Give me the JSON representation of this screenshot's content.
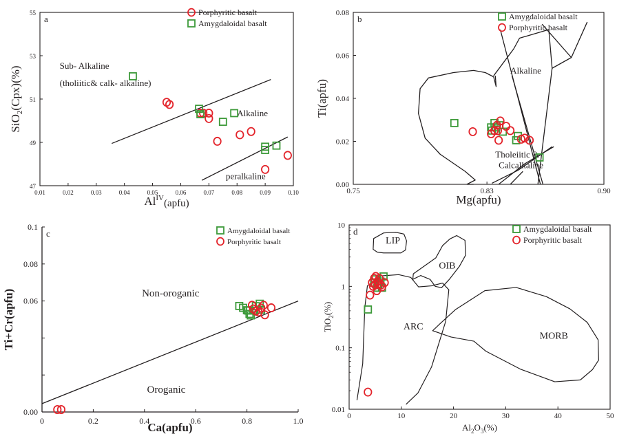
{
  "colors": {
    "porphyritic": "#e3242b",
    "amygdaloidal": "#3d9a3a",
    "line": "#231f20"
  },
  "chart_data": [
    {
      "panel": "a",
      "type": "scatter",
      "xlabel_main": "Al",
      "xlabel_sup": "IV",
      "xlabel_sub": "(apfu)",
      "ylabel_main": "SiO",
      "ylabel_sub": "2",
      "ylabel_rest": "(Cpx)(%)",
      "xlim": [
        0.01,
        0.1
      ],
      "ylim": [
        47,
        55
      ],
      "xticks": [
        0.01,
        0.02,
        0.03,
        0.04,
        0.05,
        0.06,
        0.07,
        0.08,
        0.09,
        0.1
      ],
      "xtick_labels": [
        "0.01",
        "0.02",
        "0.03",
        "0.04",
        "0.05",
        "0.06",
        "0.07",
        "0.08",
        "0.09",
        "0.10"
      ],
      "yticks": [
        47,
        49,
        51,
        53,
        55
      ],
      "ytick_labels": [
        "47",
        "49",
        "51",
        "53",
        "55"
      ],
      "legend": [
        "Porphyritic basalt",
        "Amygdaloidal basalt"
      ],
      "annotations": [
        {
          "text": "Sub- Alkaline",
          "x": 0.017,
          "y": 52.4
        },
        {
          "text": "(tholiitic& calk- alkaline)",
          "x": 0.017,
          "y": 51.6
        },
        {
          "text": "Alkaline",
          "x": 0.08,
          "y": 50.2
        },
        {
          "text": "peralkaline",
          "x": 0.076,
          "y": 47.3
        }
      ],
      "lines": [
        {
          "x": [
            0.0355,
            0.092
          ],
          "y": [
            48.95,
            51.9
          ]
        },
        {
          "x": [
            0.0675,
            0.098
          ],
          "y": [
            47.25,
            49.25
          ]
        }
      ],
      "series": [
        {
          "name": "Porphyritic basalt",
          "marker": "circle",
          "x": [
            0.055,
            0.056,
            0.067,
            0.068,
            0.07,
            0.07,
            0.073,
            0.081,
            0.085,
            0.09,
            0.098
          ],
          "y": [
            50.85,
            50.75,
            50.35,
            50.35,
            50.35,
            50.1,
            49.05,
            49.35,
            49.5,
            47.75,
            48.4
          ]
        },
        {
          "name": "Amygdaloidal basalt",
          "marker": "square",
          "x": [
            0.043,
            0.0665,
            0.067,
            0.075,
            0.079,
            0.09,
            0.09,
            0.094
          ],
          "y": [
            52.05,
            50.55,
            50.3,
            49.95,
            50.35,
            48.8,
            48.65,
            48.85
          ]
        }
      ]
    },
    {
      "panel": "b",
      "type": "scatter",
      "xlabel_main": "Mg(apfu)",
      "ylabel_main": "Ti(apfu)",
      "xlim": [
        0.75,
        0.9
      ],
      "ylim": [
        0,
        0.08
      ],
      "xticks": [
        0.75,
        0.83,
        0.9
      ],
      "xtick_labels": [
        "0.75",
        "0.83",
        "0.90"
      ],
      "yticks": [
        0,
        0.02,
        0.04,
        0.06,
        0.08
      ],
      "ytick_labels": [
        "0.00",
        "0.02",
        "0.04",
        "0.06",
        "0.08"
      ],
      "legend": [
        "Amygdaloidal basalt",
        "Porphyritic basalt"
      ],
      "annotations": [
        {
          "text": "Alkaline",
          "x": 0.844,
          "y": 0.0515
        },
        {
          "text": "Tholeiitic &",
          "x": 0.835,
          "y": 0.0125
        },
        {
          "text": "Calcalkaline",
          "x": 0.837,
          "y": 0.0075
        }
      ],
      "lines": [
        {
          "x": [
            0.835,
            0.8355,
            0.834,
            0.829,
            0.822,
            0.81,
            0.795,
            0.79,
            0.789,
            0.793,
            0.802,
            0.817,
            0.823,
            0.818,
            0.822
          ],
          "y": [
            0.0505,
            0.0455,
            0.05,
            0.052,
            0.053,
            0.052,
            0.0495,
            0.0445,
            0.033,
            0.0215,
            0.014,
            0.006,
            0.002,
            0.0,
            0.0
          ]
        },
        {
          "x": [
            0.834,
            0.846,
            0.8495,
            0.867,
            0.869,
            0.8605
          ],
          "y": [
            0.0505,
            0.063,
            0.068,
            0.072,
            0.054,
            0.0
          ]
        },
        {
          "x": [
            0.838,
            0.862
          ],
          "y": [
            0.072,
            0.0
          ]
        },
        {
          "x": [
            0.845,
            0.8635
          ],
          "y": [
            0.0505,
            0.0
          ]
        },
        {
          "x": [
            0.833,
            0.8485,
            0.869
          ],
          "y": [
            0.0005,
            0.0065,
            0.0175
          ]
        },
        {
          "x": [
            0.837,
            0.8525,
            0.87
          ],
          "y": [
            0.0,
            0.0095,
            0.0175
          ]
        },
        {
          "x": [
            0.844,
            0.8515
          ],
          "y": [
            0.0,
            0.006
          ]
        },
        {
          "x": [
            0.863,
            0.8805,
            0.89
          ],
          "y": [
            0.0745,
            0.059,
            0.0755
          ]
        },
        {
          "x": [
            0.869,
            0.8805
          ],
          "y": [
            0.054,
            0.059
          ]
        }
      ],
      "series": [
        {
          "name": "Amygdaloidal basalt",
          "marker": "square",
          "x": [
            0.8105,
            0.8325,
            0.833,
            0.8345,
            0.8355,
            0.8375,
            0.8395,
            0.8475,
            0.8485,
            0.8615
          ],
          "y": [
            0.0285,
            0.0265,
            0.025,
            0.0285,
            0.0265,
            0.0275,
            0.0245,
            0.0205,
            0.0225,
            0.0125
          ]
        },
        {
          "name": "Porphyritic basalt",
          "marker": "circle",
          "x": [
            0.8215,
            0.8325,
            0.8345,
            0.836,
            0.8365,
            0.837,
            0.838,
            0.8415,
            0.844,
            0.8505,
            0.8525,
            0.8555
          ],
          "y": [
            0.0245,
            0.0235,
            0.025,
            0.0275,
            0.025,
            0.0205,
            0.0295,
            0.027,
            0.025,
            0.021,
            0.0215,
            0.0205
          ]
        }
      ]
    },
    {
      "panel": "c",
      "type": "scatter",
      "xlabel_main": "Ca(apfu)",
      "ylabel_main": "Ti+Cr(apfu)",
      "xlim": [
        0,
        1
      ],
      "ylim": [
        0,
        0.1
      ],
      "xticks": [
        0,
        0.2,
        0.4,
        0.6,
        0.8,
        1.0
      ],
      "xtick_labels": [
        "0",
        "0.2",
        "0.4",
        "0.6",
        "0.8",
        "1.0"
      ],
      "yticks": [
        0,
        0.02,
        0.04,
        0.06,
        0.08,
        0.1
      ],
      "ytick_labels": [
        "0.00",
        "",
        "",
        "0.06",
        "0.08",
        "0.1"
      ],
      "legend": [
        "Amygdaloidal basalt",
        "Porphyritic basalt"
      ],
      "annotations": [
        {
          "text": "Non-oroganic",
          "x": 0.39,
          "y": 0.0625
        },
        {
          "text": "Oroganic",
          "x": 0.41,
          "y": 0.0105
        }
      ],
      "lines": [
        {
          "x": [
            0.0,
            1.0
          ],
          "y": [
            0.0045,
            0.06
          ]
        }
      ],
      "series": [
        {
          "name": "Amygdaloidal basalt",
          "marker": "square",
          "x": [
            0.77,
            0.785,
            0.8,
            0.805,
            0.81,
            0.815,
            0.825,
            0.835,
            0.85,
            0.855
          ],
          "y": [
            0.0573,
            0.0563,
            0.055,
            0.0548,
            0.053,
            0.0522,
            0.0548,
            0.0572,
            0.0585,
            0.0553
          ]
        },
        {
          "name": "Porphyritic basalt",
          "marker": "circle",
          "x": [
            0.06,
            0.075,
            0.82,
            0.825,
            0.835,
            0.845,
            0.855,
            0.865,
            0.87,
            0.895
          ],
          "y": [
            0.0013,
            0.0013,
            0.0577,
            0.0557,
            0.0545,
            0.054,
            0.0562,
            0.0577,
            0.0525,
            0.0563
          ]
        }
      ]
    },
    {
      "panel": "d",
      "type": "scatter",
      "xlabel_main": "Al",
      "xlabel_sub": "2",
      "xlabel_mid": "O",
      "xlabel_sub2": "3",
      "xlabel_rest": "(%)",
      "ylabel_main": "TiO",
      "ylabel_sub": "2",
      "ylabel_rest": "(%)",
      "xscale": "linear",
      "yscale": "log",
      "xlim": [
        0,
        50
      ],
      "ylim": [
        0.01,
        10
      ],
      "xticks": [
        0,
        10,
        20,
        30,
        40,
        50
      ],
      "xtick_labels": [
        "0",
        "10",
        "20",
        "30",
        "40",
        "50"
      ],
      "yticks": [
        0.01,
        0.1,
        1,
        10
      ],
      "ytick_labels": [
        "0.01",
        "0.1",
        "1",
        "10"
      ],
      "legend": [
        "Amygdaloidal basalt",
        "Porphyritic basalt"
      ],
      "annotations": [
        {
          "text": "LIP",
          "x": 7.0,
          "y": 5.0
        },
        {
          "text": "OIB",
          "x": 17.2,
          "y": 1.95
        },
        {
          "text": "ARC",
          "x": 10.4,
          "y": 0.2
        },
        {
          "text": "MORB",
          "x": 36.5,
          "y": 0.14
        }
      ],
      "regions": [
        {
          "name": "LIP",
          "x": [
            4.6,
            4.7,
            6.6,
            8.9,
            10.5,
            11.0,
            10.8,
            9.9,
            8.4,
            6.6,
            5.4,
            4.6
          ],
          "y": [
            4.0,
            6.0,
            7.4,
            7.6,
            7.1,
            5.5,
            3.9,
            3.5,
            3.5,
            3.5,
            3.6,
            4.0
          ]
        },
        {
          "name": "OIB",
          "x": [
            12.3,
            14.6,
            16.6,
            17.9,
            19.3,
            20.6,
            22.2,
            22.3,
            21.1,
            19.2,
            17.7,
            16.5,
            15.5,
            13.7,
            12.2,
            12.3
          ],
          "y": [
            1.6,
            2.2,
            2.9,
            4.6,
            5.9,
            6.7,
            5.6,
            3.2,
            2.1,
            1.3,
            0.95,
            1.0,
            1.3,
            1.5,
            1.3,
            1.6
          ]
        },
        {
          "name": "ARC",
          "x": [
            1.5,
            2.6,
            3.0,
            3.5,
            6.1,
            9.5,
            11.8,
            13.3,
            15.8,
            17.9,
            19.1,
            18.5,
            15.8,
            13.2,
            10.9
          ],
          "y": [
            0.014,
            0.055,
            0.45,
            1.02,
            1.48,
            1.55,
            1.4,
            0.98,
            1.02,
            1.13,
            0.88,
            0.27,
            0.049,
            0.0185,
            0.012
          ]
        },
        {
          "name": "MORB",
          "x": [
            16.0,
            17.5,
            20.4,
            26.0,
            32.0,
            37.8,
            42.3,
            45.6,
            47.7,
            47.8,
            46.6,
            44.3,
            39.4,
            32.8,
            26.2,
            23.9,
            19.5,
            16.0
          ],
          "y": [
            0.19,
            0.25,
            0.42,
            0.85,
            0.96,
            0.68,
            0.43,
            0.26,
            0.135,
            0.063,
            0.044,
            0.03,
            0.028,
            0.045,
            0.088,
            0.128,
            0.15,
            0.19
          ]
        }
      ],
      "series": [
        {
          "name": "Amygdaloidal basalt",
          "marker": "square",
          "x": [
            3.6,
            4.8,
            5.0,
            5.4,
            5.6,
            6.0,
            6.3,
            6.6
          ],
          "y": [
            0.42,
            1.15,
            1.3,
            0.95,
            1.05,
            1.2,
            0.95,
            1.45
          ]
        },
        {
          "name": "Porphyritic basalt",
          "marker": "circle",
          "x": [
            3.6,
            4.0,
            4.6,
            4.8,
            5.0,
            5.1,
            5.3,
            5.4,
            5.6,
            5.8,
            6.1,
            6.3,
            6.8,
            4.4
          ],
          "y": [
            0.019,
            0.72,
            1.0,
            1.35,
            1.05,
            1.45,
            0.85,
            1.2,
            1.1,
            1.35,
            1.05,
            0.98,
            1.15,
            1.15
          ]
        }
      ]
    }
  ]
}
